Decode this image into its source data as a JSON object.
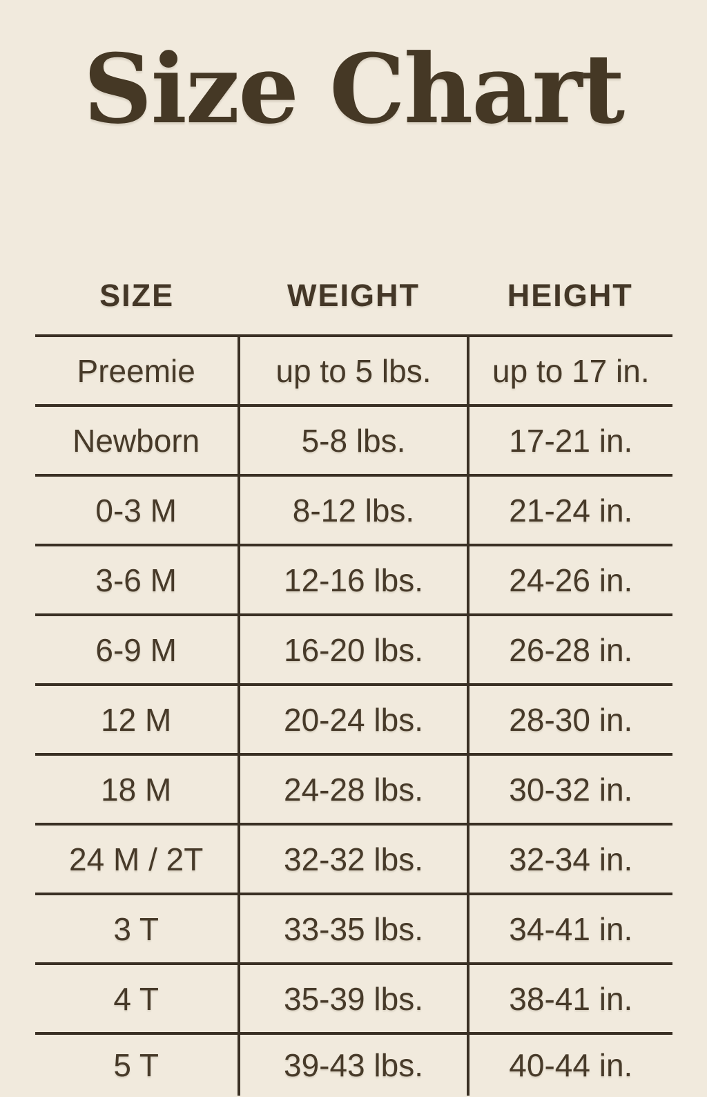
{
  "page": {
    "background_color": "#f1eadd",
    "text_color": "#463827",
    "line_color": "#3a3024"
  },
  "title": "Size Chart",
  "chart_data": {
    "type": "table",
    "title": "Size Chart",
    "columns": [
      "SIZE",
      "WEIGHT",
      "HEIGHT"
    ],
    "rows": [
      [
        "Preemie",
        "up to 5 lbs.",
        "up to 17 in."
      ],
      [
        "Newborn",
        "5-8 lbs.",
        "17-21 in."
      ],
      [
        "0-3 M",
        "8-12 lbs.",
        "21-24 in."
      ],
      [
        "3-6 M",
        "12-16 lbs.",
        "24-26 in."
      ],
      [
        "6-9 M",
        "16-20 lbs.",
        "26-28 in."
      ],
      [
        "12 M",
        "20-24 lbs.",
        "28-30 in."
      ],
      [
        "18 M",
        "24-28 lbs.",
        "30-32 in."
      ],
      [
        "24 M / 2T",
        "32-32 lbs.",
        "32-34 in."
      ],
      [
        "3 T",
        "33-35 lbs.",
        "34-41 in."
      ],
      [
        "4 T",
        "35-39 lbs.",
        "38-41 in."
      ],
      [
        "5 T",
        "39-43 lbs.",
        "40-44 in."
      ]
    ]
  }
}
